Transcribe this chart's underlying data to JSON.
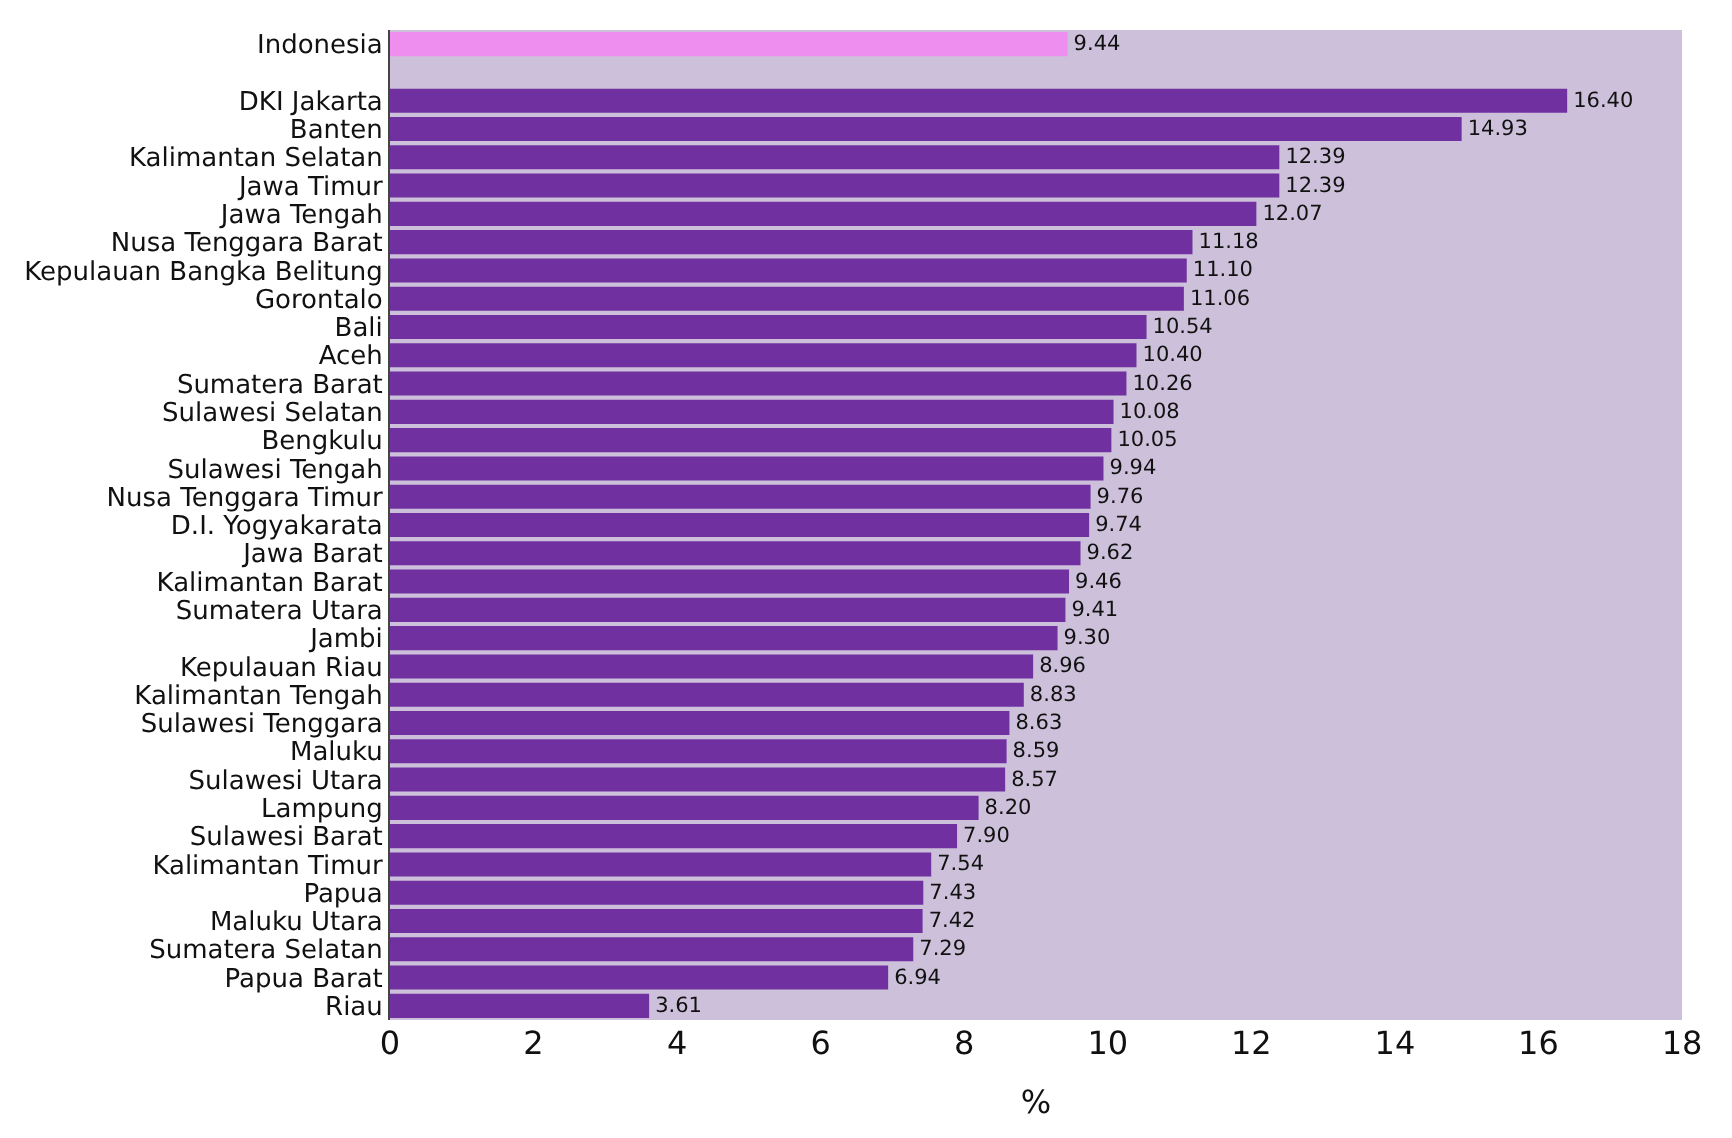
{
  "chart_data": {
    "type": "bar",
    "orientation": "horizontal",
    "xlabel": "%",
    "categories": [
      "Indonesia",
      null,
      "DKI Jakarta",
      "Banten",
      "Kalimantan Selatan",
      "Jawa Timur",
      "Jawa Tengah",
      "Nusa Tenggara Barat",
      "Kepulauan Bangka Belitung",
      "Gorontalo",
      "Bali",
      "Aceh",
      "Sumatera Barat",
      "Sulawesi Selatan",
      "Bengkulu",
      "Sulawesi Tengah",
      "Nusa Tenggara Timur",
      "D.I. Yogyakarata",
      "Jawa Barat",
      "Kalimantan Barat",
      "Sumatera Utara",
      "Jambi",
      "Kepulauan Riau",
      "Kalimantan Tengah",
      "Sulawesi Tenggara",
      "Maluku",
      "Sulawesi Utara",
      "Lampung",
      "Sulawesi Barat",
      "Kalimantan Timur",
      "Papua",
      "Maluku Utara",
      "Sumatera Selatan",
      "Papua Barat",
      "Riau"
    ],
    "values": [
      9.44,
      null,
      16.4,
      14.93,
      12.39,
      12.39,
      12.07,
      11.18,
      11.1,
      11.06,
      10.54,
      10.4,
      10.26,
      10.08,
      10.05,
      9.94,
      9.76,
      9.74,
      9.62,
      9.46,
      9.41,
      9.3,
      8.96,
      8.83,
      8.63,
      8.59,
      8.57,
      8.2,
      7.9,
      7.54,
      7.43,
      7.42,
      7.29,
      6.94,
      3.61
    ],
    "value_labels": [
      "9.44",
      null,
      "16.40",
      "14.93",
      "12.39",
      "12.39",
      "12.07",
      "11.18",
      "11.10",
      "11.06",
      "10.54",
      "10.40",
      "10.26",
      "10.08",
      "10.05",
      "9.94",
      "9.76",
      "9.74",
      "9.62",
      "9.46",
      "9.41",
      "9.30",
      "8.96",
      "8.83",
      "8.63",
      "8.59",
      "8.57",
      "8.20",
      "7.90",
      "7.54",
      "7.43",
      "7.42",
      "7.29",
      "6.94",
      "3.61"
    ],
    "colors": [
      "#ee8ff0",
      null,
      "#7030a0",
      "#7030a0",
      "#7030a0",
      "#7030a0",
      "#7030a0",
      "#7030a0",
      "#7030a0",
      "#7030a0",
      "#7030a0",
      "#7030a0",
      "#7030a0",
      "#7030a0",
      "#7030a0",
      "#7030a0",
      "#7030a0",
      "#7030a0",
      "#7030a0",
      "#7030a0",
      "#7030a0",
      "#7030a0",
      "#7030a0",
      "#7030a0",
      "#7030a0",
      "#7030a0",
      "#7030a0",
      "#7030a0",
      "#7030a0",
      "#7030a0",
      "#7030a0",
      "#7030a0",
      "#7030a0",
      "#7030a0",
      "#7030a0"
    ],
    "xlim": [
      0,
      18
    ],
    "xticks": [
      0,
      2,
      4,
      6,
      8,
      10,
      12,
      14,
      16,
      18
    ]
  }
}
